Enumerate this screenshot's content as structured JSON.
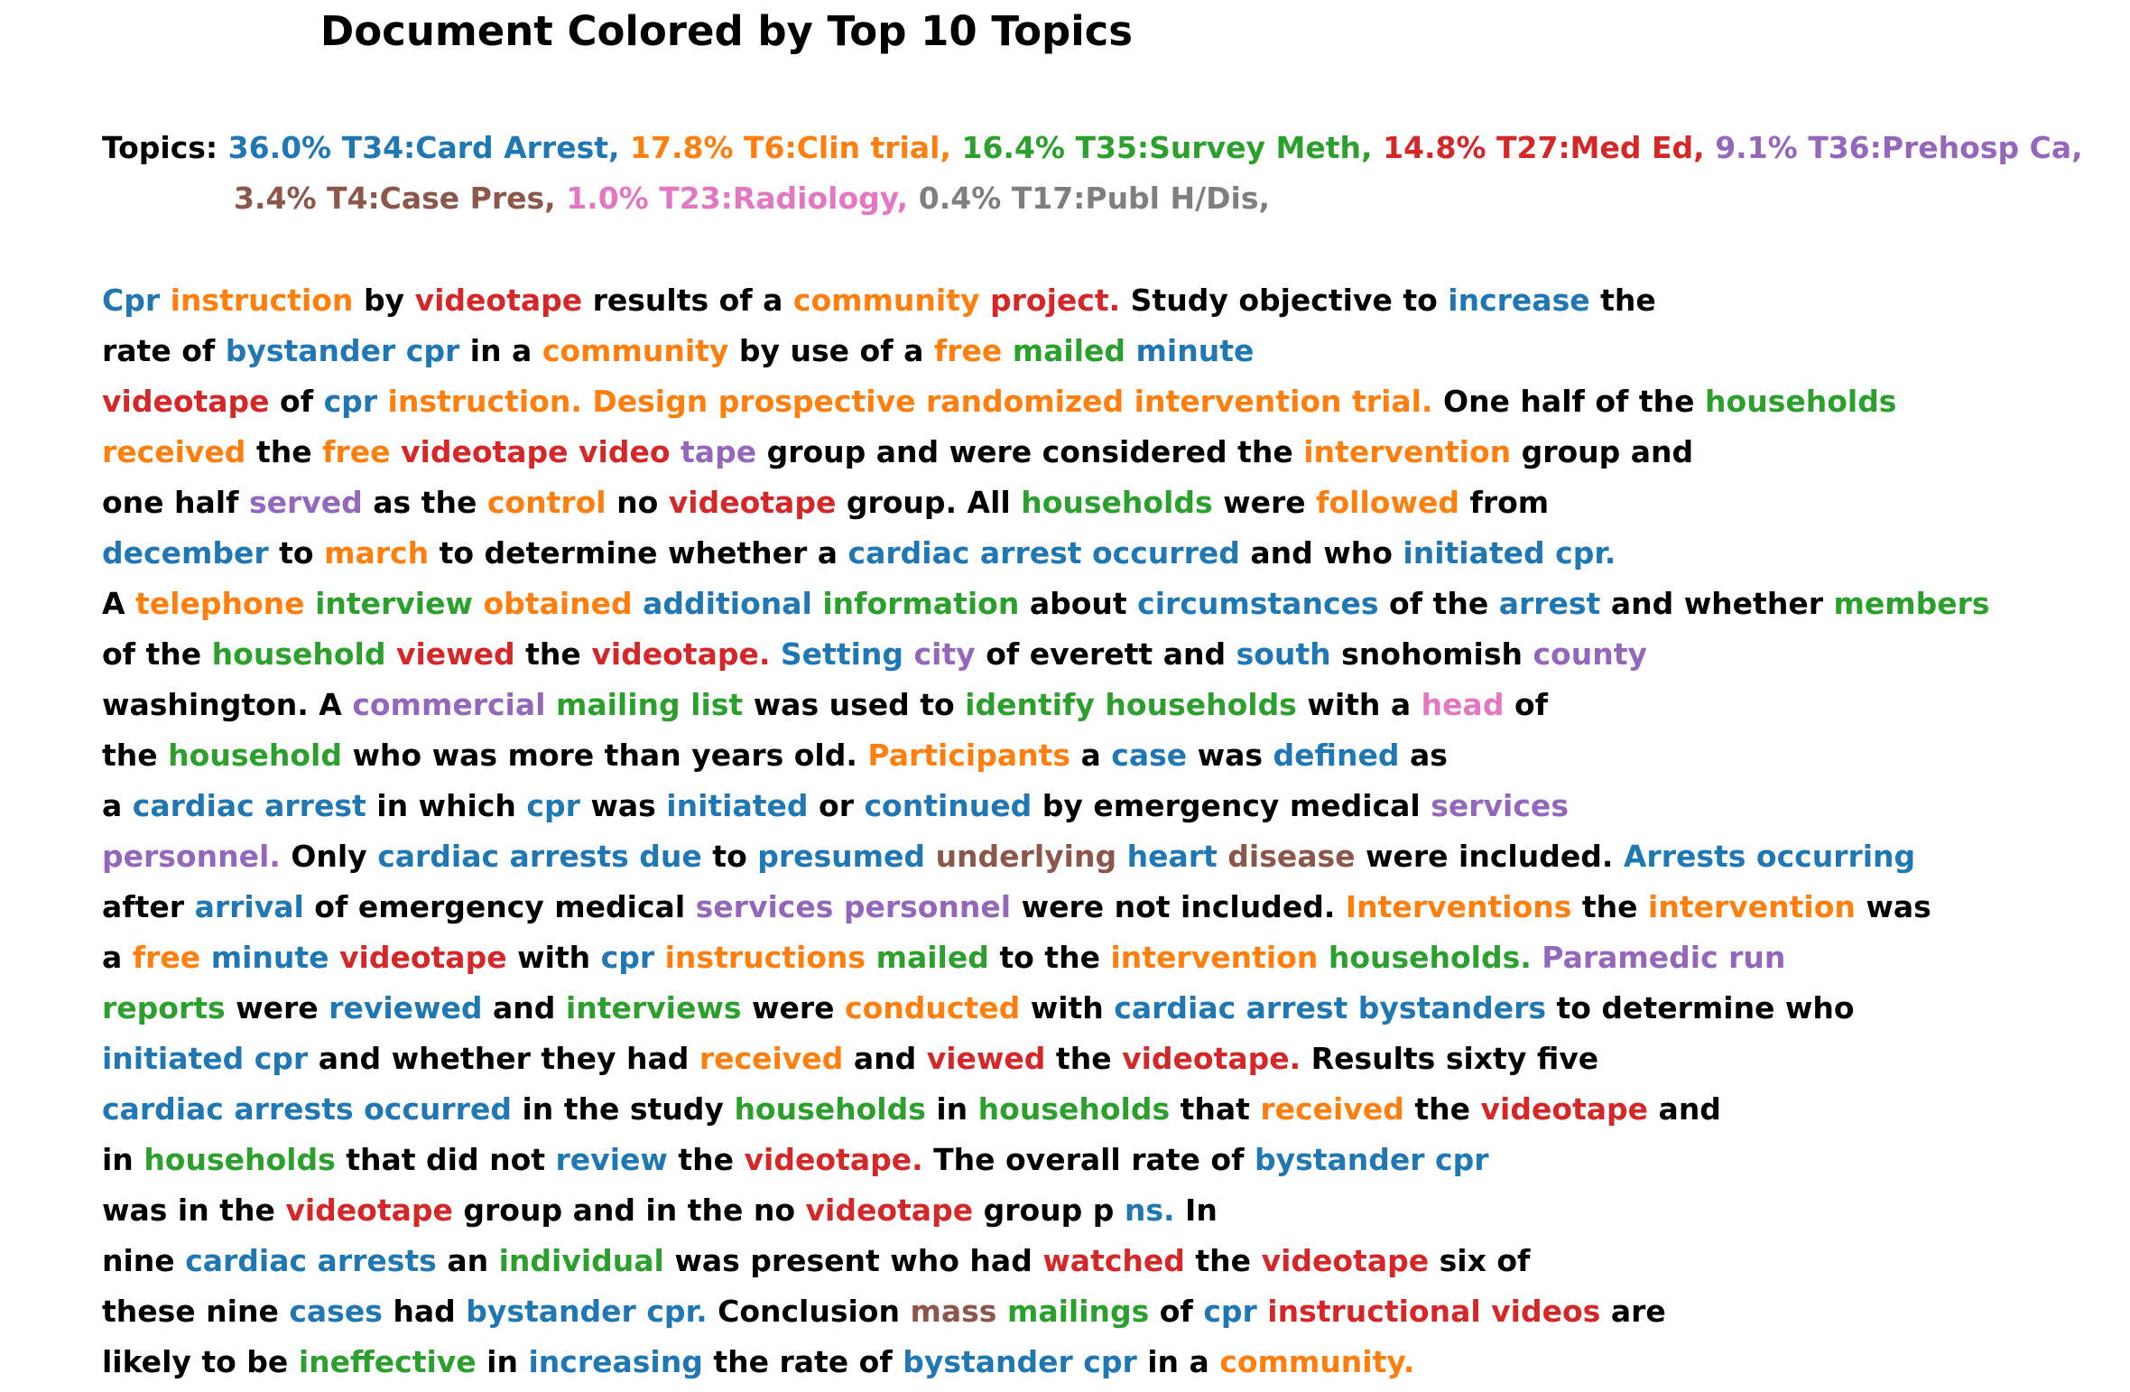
{
  "title": "Document Colored by Top 10 Topics",
  "topics_label": "Topics:",
  "colors": [
    "#1f77b4",
    "#ff7f0e",
    "#2ca02c",
    "#d62728",
    "#9467bd",
    "#8c564b",
    "#e377c2",
    "#7f7f7f"
  ],
  "topics_rows": [
    [
      {
        "text": "36.0% T34:Card Arrest,",
        "c": 0
      },
      {
        "text": "17.8% T6:Clin trial,",
        "c": 1
      },
      {
        "text": "16.4% T35:Survey Meth,",
        "c": 2
      },
      {
        "text": "14.8% T27:Med Ed,",
        "c": 3
      },
      {
        "text": "9.1% T36:Prehosp Ca,",
        "c": 4
      }
    ],
    [
      {
        "text": "3.4% T4:Case Pres,",
        "c": 5
      },
      {
        "text": "1.0% T23:Radiology,",
        "c": 6
      },
      {
        "text": "0.4% T17:Publ H/Dis,",
        "c": 7
      }
    ]
  ],
  "document_lines": [
    [
      [
        "Cpr",
        0
      ],
      [
        "instruction",
        1
      ],
      [
        "by",
        -1
      ],
      [
        "videotape",
        3
      ],
      [
        "results of a",
        -1
      ],
      [
        "community",
        1
      ],
      [
        "project.",
        3
      ],
      [
        "Study objective to",
        -1
      ],
      [
        "increase",
        0
      ],
      [
        "the",
        -1
      ]
    ],
    [
      [
        "rate of",
        -1
      ],
      [
        "bystander cpr",
        0
      ],
      [
        "in a",
        -1
      ],
      [
        "community",
        1
      ],
      [
        "by use of a",
        -1
      ],
      [
        "free",
        1
      ],
      [
        "mailed",
        2
      ],
      [
        "minute",
        0
      ]
    ],
    [
      [
        "videotape",
        3
      ],
      [
        "of",
        -1
      ],
      [
        "cpr",
        0
      ],
      [
        "instruction. Design prospective randomized intervention trial.",
        1
      ],
      [
        "One half of the",
        -1
      ],
      [
        "households",
        2
      ]
    ],
    [
      [
        "received",
        1
      ],
      [
        "the",
        -1
      ],
      [
        "free",
        1
      ],
      [
        "videotape video",
        3
      ],
      [
        "tape",
        4
      ],
      [
        "group and were considered the",
        -1
      ],
      [
        "intervention",
        1
      ],
      [
        "group and",
        -1
      ]
    ],
    [
      [
        "one half",
        -1
      ],
      [
        "served",
        4
      ],
      [
        "as the",
        -1
      ],
      [
        "control",
        1
      ],
      [
        "no",
        -1
      ],
      [
        "videotape",
        3
      ],
      [
        "group. All",
        -1
      ],
      [
        "households",
        2
      ],
      [
        "were",
        -1
      ],
      [
        "followed",
        1
      ],
      [
        "from",
        -1
      ]
    ],
    [
      [
        "december",
        0
      ],
      [
        "to",
        -1
      ],
      [
        "march",
        1
      ],
      [
        "to determine whether a",
        -1
      ],
      [
        "cardiac arrest occurred",
        0
      ],
      [
        "and who",
        -1
      ],
      [
        "initiated cpr.",
        0
      ]
    ],
    [
      [
        "A",
        -1
      ],
      [
        "telephone",
        1
      ],
      [
        "interview",
        2
      ],
      [
        "obtained",
        1
      ],
      [
        "additional",
        0
      ],
      [
        "information",
        2
      ],
      [
        "about",
        -1
      ],
      [
        "circumstances",
        0
      ],
      [
        "of the",
        -1
      ],
      [
        "arrest",
        0
      ],
      [
        "and whether",
        -1
      ],
      [
        "members",
        2
      ]
    ],
    [
      [
        "of the",
        -1
      ],
      [
        "household",
        2
      ],
      [
        "viewed",
        3
      ],
      [
        "the",
        -1
      ],
      [
        "videotape.",
        3
      ],
      [
        "Setting",
        0
      ],
      [
        "city",
        4
      ],
      [
        "of everett and",
        -1
      ],
      [
        "south",
        0
      ],
      [
        "snohomish",
        -1
      ],
      [
        "county",
        4
      ]
    ],
    [
      [
        "washington. A",
        -1
      ],
      [
        "commercial",
        4
      ],
      [
        "mailing list",
        2
      ],
      [
        "was used to",
        -1
      ],
      [
        "identify households",
        2
      ],
      [
        "with a",
        -1
      ],
      [
        "head",
        6
      ],
      [
        "of",
        -1
      ]
    ],
    [
      [
        "the",
        -1
      ],
      [
        "household",
        2
      ],
      [
        "who was more than years old.",
        -1
      ],
      [
        "Participants",
        1
      ],
      [
        "a",
        -1
      ],
      [
        "case",
        0
      ],
      [
        "was",
        -1
      ],
      [
        "defined",
        0
      ],
      [
        "as",
        -1
      ]
    ],
    [
      [
        "a",
        -1
      ],
      [
        "cardiac arrest",
        0
      ],
      [
        "in which",
        -1
      ],
      [
        "cpr",
        0
      ],
      [
        "was",
        -1
      ],
      [
        "initiated",
        0
      ],
      [
        "or",
        -1
      ],
      [
        "continued",
        0
      ],
      [
        "by emergency medical",
        -1
      ],
      [
        "services",
        4
      ]
    ],
    [
      [
        "personnel.",
        4
      ],
      [
        "Only",
        -1
      ],
      [
        "cardiac arrests due",
        0
      ],
      [
        "to",
        -1
      ],
      [
        "presumed",
        0
      ],
      [
        "underlying",
        5
      ],
      [
        "heart",
        0
      ],
      [
        "disease",
        5
      ],
      [
        "were included.",
        -1
      ],
      [
        "Arrests occurring",
        0
      ]
    ],
    [
      [
        "after",
        -1
      ],
      [
        "arrival",
        0
      ],
      [
        "of emergency medical",
        -1
      ],
      [
        "services personnel",
        4
      ],
      [
        "were not included.",
        -1
      ],
      [
        "Interventions",
        1
      ],
      [
        "the",
        -1
      ],
      [
        "intervention",
        1
      ],
      [
        "was",
        -1
      ]
    ],
    [
      [
        "a",
        -1
      ],
      [
        "free",
        1
      ],
      [
        "minute",
        0
      ],
      [
        "videotape",
        3
      ],
      [
        "with",
        -1
      ],
      [
        "cpr",
        0
      ],
      [
        "instructions",
        1
      ],
      [
        "mailed",
        2
      ],
      [
        "to the",
        -1
      ],
      [
        "intervention",
        1
      ],
      [
        "households.",
        2
      ],
      [
        "Paramedic run",
        4
      ]
    ],
    [
      [
        "reports",
        2
      ],
      [
        "were",
        -1
      ],
      [
        "reviewed",
        0
      ],
      [
        "and",
        -1
      ],
      [
        "interviews",
        2
      ],
      [
        "were",
        -1
      ],
      [
        "conducted",
        1
      ],
      [
        "with",
        -1
      ],
      [
        "cardiac arrest bystanders",
        0
      ],
      [
        "to determine who",
        -1
      ]
    ],
    [
      [
        "initiated cpr",
        0
      ],
      [
        "and whether they had",
        -1
      ],
      [
        "received",
        1
      ],
      [
        "and",
        -1
      ],
      [
        "viewed",
        3
      ],
      [
        "the",
        -1
      ],
      [
        "videotape.",
        3
      ],
      [
        "Results sixty five",
        -1
      ]
    ],
    [
      [
        "cardiac arrests occurred",
        0
      ],
      [
        "in the study",
        -1
      ],
      [
        "households",
        2
      ],
      [
        "in",
        -1
      ],
      [
        "households",
        2
      ],
      [
        "that",
        -1
      ],
      [
        "received",
        1
      ],
      [
        "the",
        -1
      ],
      [
        "videotape",
        3
      ],
      [
        "and",
        -1
      ]
    ],
    [
      [
        "in",
        -1
      ],
      [
        "households",
        2
      ],
      [
        "that did not",
        -1
      ],
      [
        "review",
        0
      ],
      [
        "the",
        -1
      ],
      [
        "videotape.",
        3
      ],
      [
        "The overall rate of",
        -1
      ],
      [
        "bystander cpr",
        0
      ]
    ],
    [
      [
        "was in the",
        -1
      ],
      [
        "videotape",
        3
      ],
      [
        "group and in the no",
        -1
      ],
      [
        "videotape",
        3
      ],
      [
        "group p",
        -1
      ],
      [
        "ns.",
        0
      ],
      [
        "In",
        -1
      ]
    ],
    [
      [
        "nine",
        -1
      ],
      [
        "cardiac arrests",
        0
      ],
      [
        "an",
        -1
      ],
      [
        "individual",
        2
      ],
      [
        "was present who had",
        -1
      ],
      [
        "watched",
        3
      ],
      [
        "the",
        -1
      ],
      [
        "videotape",
        3
      ],
      [
        "six of",
        -1
      ]
    ],
    [
      [
        "these nine",
        -1
      ],
      [
        "cases",
        0
      ],
      [
        "had",
        -1
      ],
      [
        "bystander cpr.",
        0
      ],
      [
        "Conclusion",
        -1
      ],
      [
        "mass",
        5
      ],
      [
        "mailings",
        2
      ],
      [
        "of",
        -1
      ],
      [
        "cpr",
        0
      ],
      [
        "instructional videos",
        3
      ],
      [
        "are",
        -1
      ]
    ],
    [
      [
        "likely to be",
        -1
      ],
      [
        "ineffective",
        2
      ],
      [
        "in",
        -1
      ],
      [
        "increasing",
        0
      ],
      [
        "the rate of",
        -1
      ],
      [
        "bystander cpr",
        0
      ],
      [
        "in a",
        -1
      ],
      [
        "community.",
        1
      ]
    ]
  ]
}
